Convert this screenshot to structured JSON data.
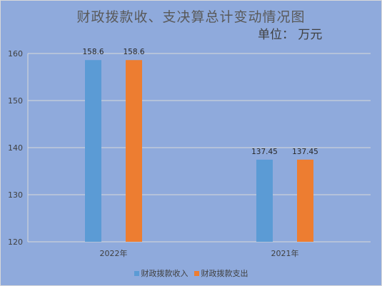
{
  "chart_data": {
    "type": "bar",
    "title": "财政拨款收、支决算总计变动情况图",
    "unit": "单位：  万元",
    "categories": [
      "2022年",
      "2021年"
    ],
    "series": [
      {
        "name": "财政拨款收入",
        "values": [
          158.6,
          137.45
        ],
        "color": "#5b9bd5"
      },
      {
        "name": "财政拨款支出",
        "values": [
          158.6,
          137.45
        ],
        "color": "#ed7d31"
      }
    ],
    "data_labels": [
      [
        "158.6",
        "137.45"
      ],
      [
        "158.6",
        "137.45"
      ]
    ],
    "ylim": [
      120,
      160
    ],
    "yticks": [
      120,
      130,
      140,
      150,
      160
    ],
    "grid": true,
    "legend_position": "bottom",
    "plot_background": "#8faadc"
  }
}
